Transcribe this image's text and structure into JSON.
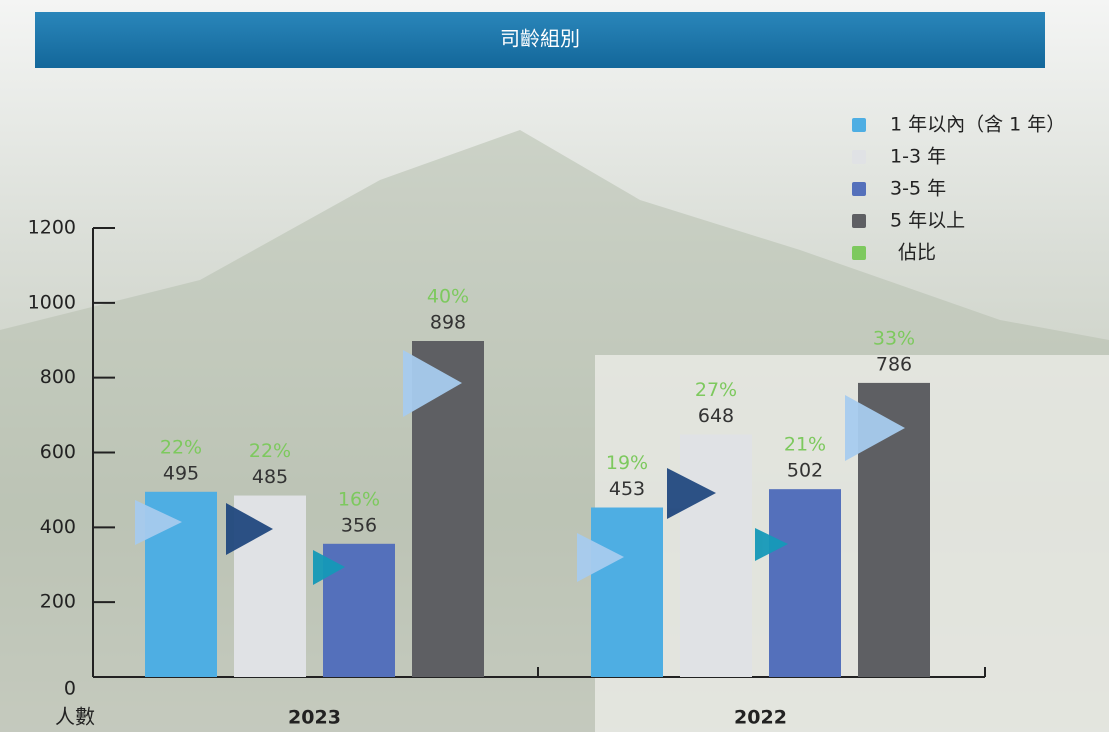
{
  "chart_data": {
    "type": "bar",
    "title": "司齡組別",
    "y_label": "人數",
    "categories": [
      "2023",
      "2022"
    ],
    "series": [
      {
        "name": "1 年以內（含 1 年）",
        "color": "#4eaee3",
        "values": [
          495,
          453
        ],
        "share_labels": [
          "22%",
          "19%"
        ]
      },
      {
        "name": "1-3 年",
        "color": "#e0e2e5",
        "values": [
          485,
          648
        ],
        "share_labels": [
          "22%",
          "27%"
        ]
      },
      {
        "name": "3-5 年",
        "color": "#5470bb",
        "values": [
          356,
          502
        ],
        "share_labels": [
          "16%",
          "21%"
        ]
      },
      {
        "name": "5 年以上",
        "color": "#5e5f63",
        "values": [
          898,
          786
        ],
        "share_labels": [
          "40%",
          "33%"
        ]
      }
    ],
    "share_legend": {
      "name": "佔比",
      "color": "#7dc95e"
    },
    "ylim": [
      0,
      1200
    ],
    "yticks": [
      0,
      200,
      400,
      600,
      800,
      1000,
      1200
    ]
  }
}
